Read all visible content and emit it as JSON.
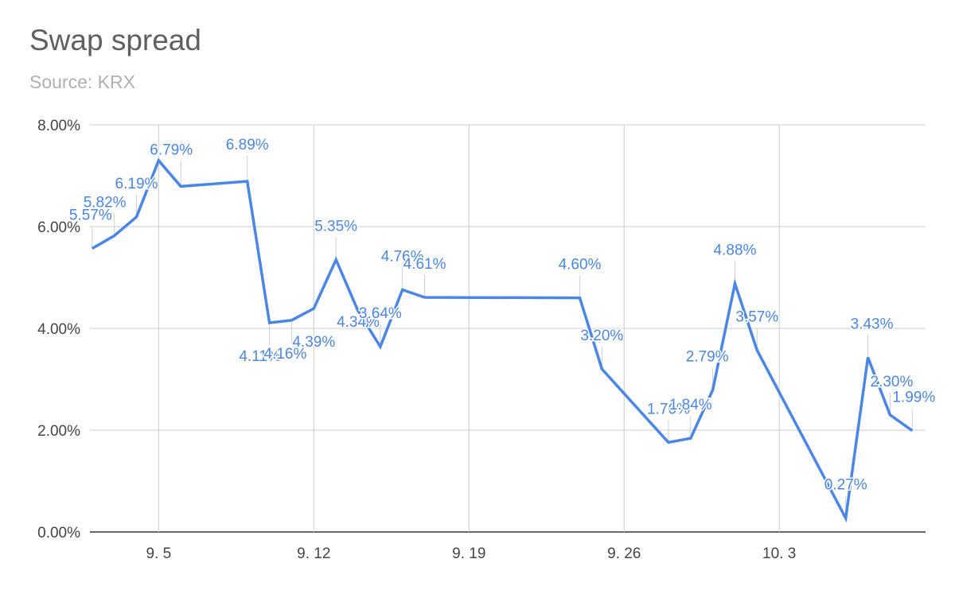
{
  "chart_data": {
    "type": "line",
    "title": "Swap spread",
    "subtitle": "Source: KRX",
    "xlabel": "",
    "ylabel": "",
    "ylim": [
      0,
      8
    ],
    "y_ticks": [
      "0.00%",
      "2.00%",
      "4.00%",
      "6.00%",
      "8.00%"
    ],
    "y_tick_values": [
      0,
      2,
      4,
      6,
      8
    ],
    "x_ticks": [
      {
        "label": "9. 5",
        "day": 5
      },
      {
        "label": "9. 12",
        "day": 12
      },
      {
        "label": "9. 19",
        "day": 19
      },
      {
        "label": "9. 26",
        "day": 26
      },
      {
        "label": "10. 3",
        "day": 33
      }
    ],
    "x_range": [
      1.9,
      39.6
    ],
    "grid": true,
    "line_color": "#4a86e8",
    "series": [
      {
        "points": [
          {
            "day": 2,
            "value": 5.57,
            "label": "5.57%"
          },
          {
            "day": 3,
            "value": 5.82,
            "label": "5.82%"
          },
          {
            "day": 4,
            "value": 6.19,
            "label": "6.19%"
          },
          {
            "day": 5,
            "value": 7.3,
            "label": ""
          },
          {
            "day": 6,
            "value": 6.79,
            "label": "6.79%"
          },
          {
            "day": 9,
            "value": 6.89,
            "label": "6.89%"
          },
          {
            "day": 10,
            "value": 4.11,
            "label": "4.11%"
          },
          {
            "day": 11,
            "value": 4.16,
            "label": "4.16%"
          },
          {
            "day": 12,
            "value": 4.39,
            "label": "4.39%"
          },
          {
            "day": 13,
            "value": 5.35,
            "label": "5.35%"
          },
          {
            "day": 14,
            "value": 4.34,
            "label": "4.34%"
          },
          {
            "day": 15,
            "value": 3.64,
            "label": "3.64%"
          },
          {
            "day": 16,
            "value": 4.76,
            "label": "4.76%"
          },
          {
            "day": 17,
            "value": 4.61,
            "label": "4.61%"
          },
          {
            "day": 24,
            "value": 4.6,
            "label": "4.60%"
          },
          {
            "day": 25,
            "value": 3.2,
            "label": "3.20%"
          },
          {
            "day": 28,
            "value": 1.76,
            "label": "1.76%"
          },
          {
            "day": 29,
            "value": 1.84,
            "label": "1.84%"
          },
          {
            "day": 30,
            "value": 2.79,
            "label": "2.79%"
          },
          {
            "day": 31,
            "value": 4.88,
            "label": "4.88%"
          },
          {
            "day": 32,
            "value": 3.57,
            "label": "3.57%"
          },
          {
            "day": 36,
            "value": 0.27,
            "label": "0.27%"
          },
          {
            "day": 37,
            "value": 3.43,
            "label": "3.43%"
          },
          {
            "day": 38,
            "value": 2.3,
            "label": "2.30%"
          },
          {
            "day": 39,
            "value": 1.99,
            "label": "1.99%"
          }
        ]
      }
    ]
  }
}
